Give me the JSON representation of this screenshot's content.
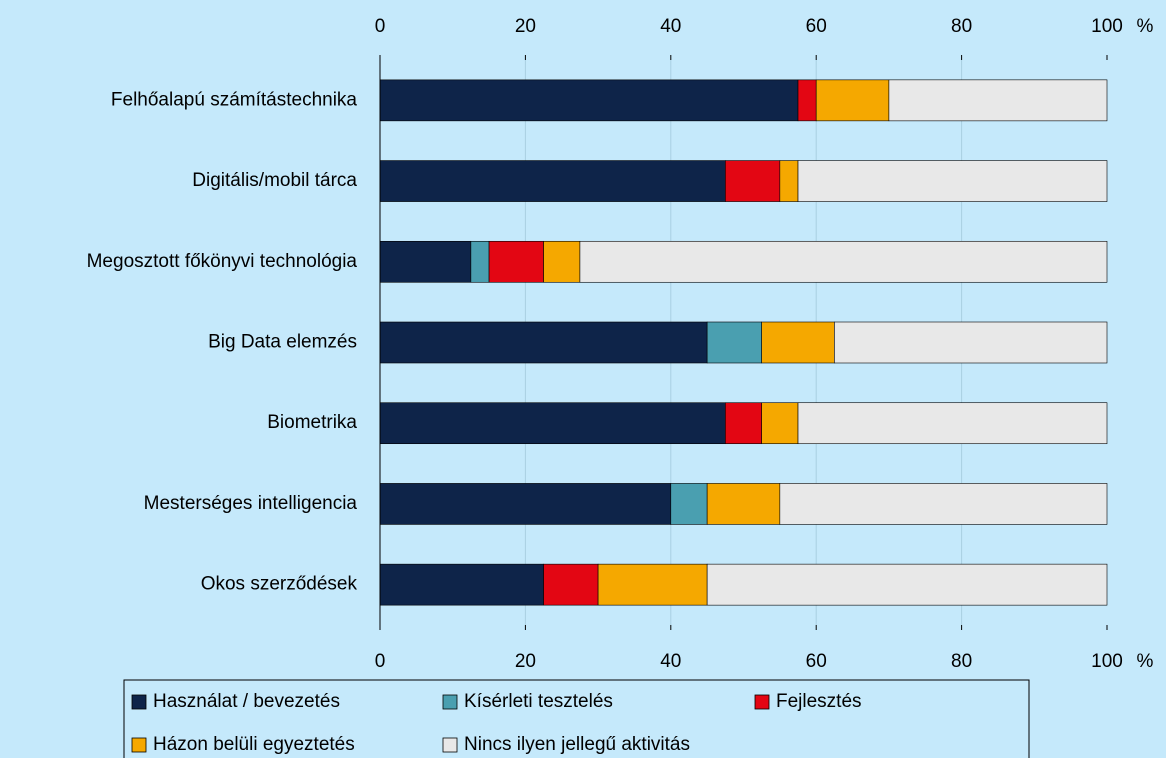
{
  "chart_data": {
    "type": "stacked-bar-horizontal",
    "categories": [
      "Felhőalapú számítástechnika",
      "Digitális/mobil tárca",
      "Megosztott főkönyvi technológia",
      "Big Data elemzés",
      "Biometrika",
      "Mesterséges intelligencia",
      "Okos szerződések"
    ],
    "series": [
      {
        "name": "Használat / bevezetés",
        "color": "#0e2449",
        "values": [
          57.5,
          47.5,
          12.5,
          45,
          47.5,
          40,
          22.5
        ]
      },
      {
        "name": "Kísérleti tesztelés",
        "color": "#4a9fb0",
        "values": [
          0,
          0,
          2.5,
          7.5,
          0,
          5,
          0
        ]
      },
      {
        "name": "Fejlesztés",
        "color": "#e30613",
        "values": [
          2.5,
          7.5,
          7.5,
          0,
          5,
          0,
          7.5
        ]
      },
      {
        "name": "Házon belüli egyeztetés",
        "color": "#f5a800",
        "values": [
          10,
          2.5,
          5,
          10,
          5,
          10,
          15
        ]
      },
      {
        "name": "Nincs ilyen jellegű aktivitás",
        "color": "#e8e8e8",
        "values": [
          30,
          42.5,
          72.5,
          37.5,
          42.5,
          45,
          55
        ]
      }
    ],
    "xlim": [
      0,
      100
    ],
    "xticks": [
      0,
      20,
      40,
      60,
      80,
      100
    ],
    "x_unit": "%",
    "grid": true
  }
}
